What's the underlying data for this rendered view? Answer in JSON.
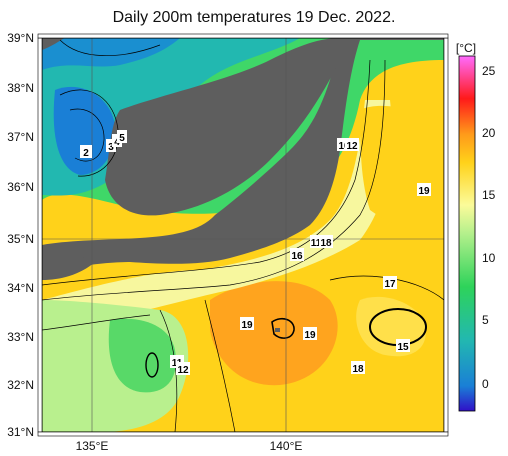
{
  "title": "Daily 200m temperatures 19 Dec. 2022.",
  "map": {
    "lat_labels": [
      "39°N",
      "38°N",
      "37°N",
      "36°N",
      "35°N",
      "34°N",
      "33°N",
      "32°N",
      "31°N"
    ],
    "lon_labels": [
      "135°E",
      "140°E"
    ],
    "colors": {
      "land": "#5e5e5e",
      "cold": "#1a7fd6",
      "cool": "#22b8b0",
      "green": "#2ed35a",
      "lightgreen": "#a6ef8a",
      "pale": "#f5f5a0",
      "yellow": "#ffd21a",
      "orange": "#ff9e1a"
    },
    "contour_labels": [
      {
        "text": "2"
      },
      {
        "text": "3"
      },
      {
        "text": "4"
      },
      {
        "text": "5"
      },
      {
        "text": "10"
      },
      {
        "text": "12"
      },
      {
        "text": "19"
      },
      {
        "text": "11"
      },
      {
        "text": "18"
      },
      {
        "text": "16"
      },
      {
        "text": "17"
      },
      {
        "text": "19"
      },
      {
        "text": "19"
      },
      {
        "text": "15"
      },
      {
        "text": "18"
      },
      {
        "text": "11"
      },
      {
        "text": "12"
      }
    ]
  },
  "colorbar": {
    "unit": "[°C]",
    "ticks": [
      "25",
      "20",
      "15",
      "10",
      "5",
      "0"
    ],
    "stops": [
      "#ff6bff",
      "#ff1a1a",
      "#ff9a1a",
      "#ffd21a",
      "#fbfb9a",
      "#2ed35a",
      "#22b8b0",
      "#1a7fd6",
      "#3010c8"
    ]
  }
}
